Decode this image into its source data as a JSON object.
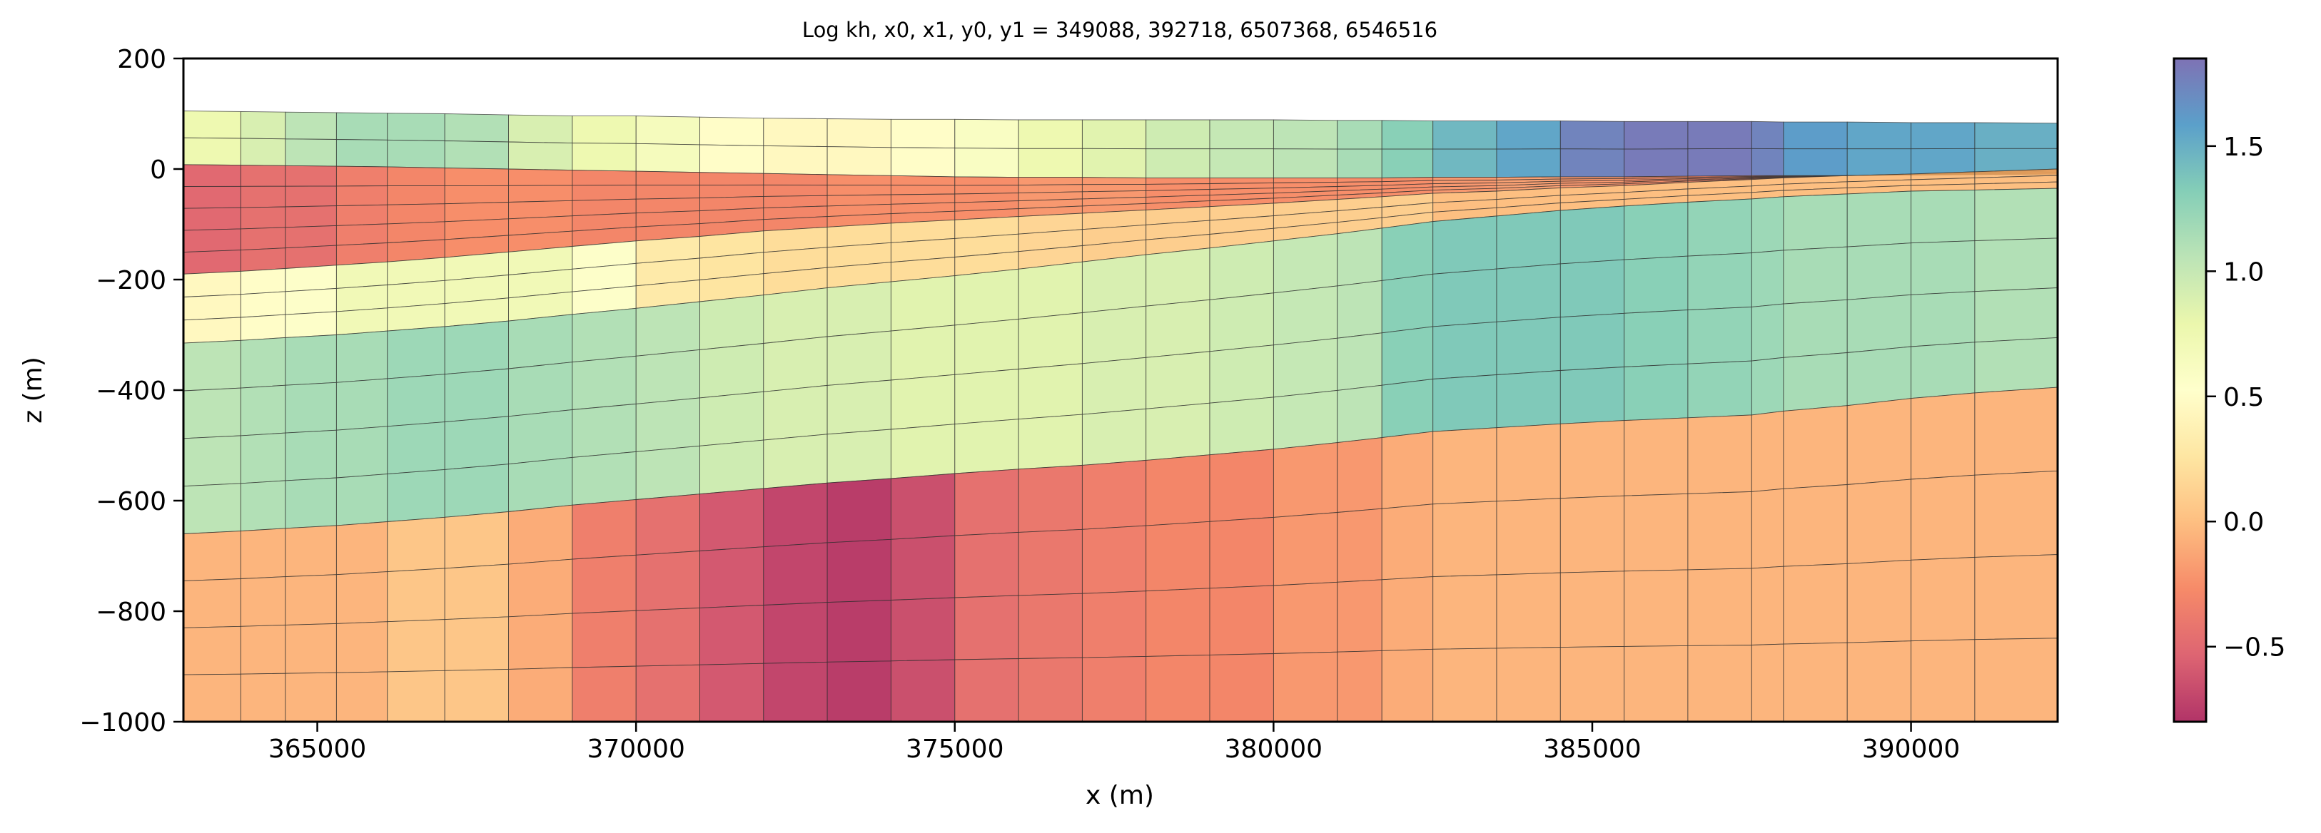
{
  "chart_data": {
    "type": "heatmap",
    "title": "Log kh, x0, x1, y0, y1 = 349088, 392718, 6507368, 6546516",
    "xlabel": "x (m)",
    "ylabel": "z (m)",
    "xlim": [
      362900,
      392300
    ],
    "ylim": [
      -1000,
      200
    ],
    "xticks": [
      365000,
      370000,
      375000,
      380000,
      385000,
      390000
    ],
    "xtick_labels": [
      "365000",
      "370000",
      "375000",
      "380000",
      "385000",
      "390000"
    ],
    "yticks": [
      200,
      0,
      -200,
      -400,
      -600,
      -800,
      -1000
    ],
    "ytick_labels": [
      "200",
      "0",
      "−200",
      "−400",
      "−600",
      "−800",
      "−1000"
    ],
    "colormap": "Spectral",
    "colorbar": {
      "range": [
        -0.8,
        1.85
      ],
      "ticks": [
        -0.5,
        0.0,
        0.5,
        1.0,
        1.5
      ],
      "tick_labels": [
        "−0.5",
        "0.0",
        "0.5",
        "1.0",
        "1.5"
      ]
    },
    "grid": false,
    "x_nodes": [
      362900,
      363800,
      364500,
      365300,
      366100,
      367000,
      368000,
      369000,
      370000,
      371000,
      372000,
      373000,
      374000,
      375000,
      376000,
      377000,
      378000,
      379000,
      380000,
      381000,
      381700,
      382500,
      383500,
      384500,
      385500,
      386500,
      387500,
      388000,
      389000,
      390000,
      391000,
      392300
    ],
    "horizons": [
      [
        105,
        104,
        103,
        102,
        101,
        100,
        98,
        96,
        96,
        94,
        92,
        91,
        90,
        90,
        89,
        89,
        89,
        89,
        89,
        88,
        88,
        87,
        87,
        87,
        86,
        86,
        86,
        85,
        85,
        84,
        84,
        83
      ],
      [
        8,
        7,
        6,
        5,
        4,
        2,
        0,
        -2,
        -4,
        -6,
        -8,
        -10,
        -12,
        -14,
        -15,
        -15,
        -16,
        -16,
        -16,
        -16,
        -16,
        -15,
        -15,
        -14,
        -14,
        -13,
        -12,
        -12,
        -12,
        -11,
        -10,
        -9
      ],
      [
        -190,
        -185,
        -180,
        -174,
        -168,
        -160,
        -150,
        -140,
        -130,
        -122,
        -112,
        -105,
        -98,
        -92,
        -86,
        -80,
        -74,
        -68,
        -62,
        -55,
        -50,
        -44,
        -40,
        -34,
        -30,
        -24,
        -19,
        -16,
        -12,
        -9,
        -5,
        0
      ],
      [
        -315,
        -310,
        -305,
        -300,
        -293,
        -285,
        -275,
        -263,
        -252,
        -240,
        -228,
        -215,
        -204,
        -193,
        -181,
        -168,
        -155,
        -143,
        -130,
        -117,
        -107,
        -95,
        -85,
        -75,
        -67,
        -60,
        -54,
        -50,
        -45,
        -40,
        -38,
        -35
      ],
      [
        -660,
        -655,
        -650,
        -645,
        -638,
        -630,
        -620,
        -608,
        -598,
        -588,
        -578,
        -568,
        -560,
        -551,
        -543,
        -536,
        -527,
        -517,
        -507,
        -495,
        -486,
        -475,
        -468,
        -461,
        -455,
        -450,
        -445,
        -438,
        -428,
        -415,
        -405,
        -395
      ],
      [
        -1000,
        -1000,
        -1000,
        -1000,
        -1000,
        -1000,
        -1000,
        -1000,
        -1000,
        -1000,
        -1000,
        -1000,
        -1000,
        -1000,
        -1000,
        -1000,
        -1000,
        -1000,
        -1000,
        -1000,
        -1000,
        -1000,
        -1000,
        -1000,
        -1000,
        -1000,
        -1000,
        -1000,
        -1000,
        -1000,
        -1000,
        -1000
      ]
    ],
    "sublayers": [
      2,
      5,
      3,
      4,
      4
    ],
    "values": [
      [
        0.75,
        0.9,
        1.05,
        1.15,
        1.15,
        1.1,
        0.9,
        0.75,
        0.65,
        0.5,
        0.45,
        0.45,
        0.5,
        0.6,
        0.75,
        0.85,
        0.95,
        1.0,
        1.05,
        1.15,
        1.3,
        1.45,
        1.55,
        1.75,
        1.8,
        1.8,
        1.75,
        1.6,
        1.55,
        1.55,
        1.5
      ],
      [
        -0.5,
        -0.45,
        -0.45,
        -0.35,
        -0.3,
        -0.25,
        -0.25,
        -0.3,
        -0.3,
        -0.3,
        -0.3,
        -0.25,
        -0.25,
        -0.25,
        -0.2,
        -0.2,
        -0.25,
        -0.25,
        -0.25,
        -0.25,
        -0.25,
        -0.2,
        -0.15,
        -0.2,
        -0.25,
        -0.3,
        -0.3,
        -0.2,
        -0.2,
        -0.2,
        -0.2
      ],
      [
        0.45,
        0.5,
        0.55,
        0.7,
        0.7,
        0.7,
        0.7,
        0.55,
        0.3,
        0.25,
        0.2,
        0.2,
        0.2,
        0.2,
        0.15,
        0.1,
        0.1,
        0.1,
        0.1,
        0.1,
        0.1,
        0.0,
        0.0,
        0.0,
        0.0,
        0.0,
        0.0,
        0.0,
        0.0,
        0.0,
        0.0
      ],
      [
        1.05,
        1.1,
        1.15,
        1.15,
        1.2,
        1.2,
        1.15,
        1.1,
        1.05,
        0.95,
        0.9,
        0.9,
        0.85,
        0.85,
        0.85,
        0.9,
        0.9,
        0.95,
        1.0,
        1.05,
        1.3,
        1.35,
        1.35,
        1.35,
        1.3,
        1.25,
        1.2,
        1.15,
        1.15,
        1.15,
        1.1
      ],
      [
        -0.05,
        -0.05,
        -0.05,
        -0.05,
        0.05,
        0.05,
        -0.1,
        -0.35,
        -0.45,
        -0.6,
        -0.7,
        -0.75,
        -0.65,
        -0.45,
        -0.4,
        -0.35,
        -0.3,
        -0.3,
        -0.2,
        -0.2,
        -0.1,
        -0.05,
        -0.05,
        -0.05,
        -0.05,
        -0.05,
        -0.05,
        -0.05,
        -0.05,
        -0.05,
        -0.05
      ]
    ]
  }
}
